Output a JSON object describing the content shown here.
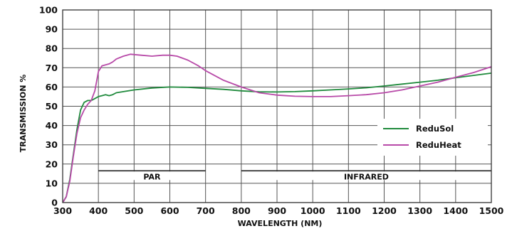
{
  "chart_data": {
    "type": "line",
    "title": "",
    "xlabel": "WAVELENGTH (NM)",
    "ylabel": "TRANSMISSION %",
    "xlim": [
      300,
      1500
    ],
    "ylim": [
      0,
      100
    ],
    "xticks": [
      300,
      400,
      500,
      600,
      700,
      800,
      900,
      1000,
      1100,
      1200,
      1300,
      1400,
      1500
    ],
    "yticks": [
      0,
      10,
      20,
      30,
      40,
      50,
      60,
      70,
      80,
      90,
      100
    ],
    "grid": true,
    "legend_position": "right",
    "series": [
      {
        "name": "ReduSol",
        "color": "#1f8a3c",
        "x": [
          300,
          310,
          320,
          330,
          340,
          350,
          360,
          370,
          380,
          390,
          400,
          410,
          420,
          430,
          440,
          450,
          500,
          550,
          600,
          650,
          700,
          750,
          800,
          850,
          900,
          950,
          1000,
          1050,
          1100,
          1150,
          1200,
          1250,
          1300,
          1350,
          1400,
          1450,
          1500
        ],
        "y": [
          0,
          3,
          12,
          25,
          38,
          48,
          52,
          53,
          53,
          54,
          55,
          55.5,
          56,
          55.5,
          56,
          57,
          58.5,
          59.5,
          60,
          59.8,
          59.3,
          58.8,
          58,
          57.5,
          57.4,
          57.6,
          58,
          58.5,
          59,
          59.6,
          60.5,
          61.5,
          62.5,
          63.5,
          64.8,
          66,
          67.2
        ]
      },
      {
        "name": "ReduHeat",
        "color": "#b84aa8",
        "x": [
          300,
          310,
          320,
          330,
          340,
          350,
          360,
          370,
          380,
          390,
          400,
          410,
          420,
          430,
          440,
          450,
          470,
          490,
          520,
          550,
          580,
          600,
          620,
          650,
          680,
          700,
          750,
          800,
          850,
          900,
          950,
          1000,
          1050,
          1100,
          1150,
          1200,
          1250,
          1300,
          1350,
          1400,
          1450,
          1500
        ],
        "y": [
          0,
          3,
          11,
          24,
          36,
          44,
          48,
          51,
          53,
          58,
          68,
          71,
          71.5,
          72,
          73,
          74.5,
          76,
          77,
          76.5,
          76,
          76.5,
          76.5,
          76,
          74,
          71,
          68.5,
          63.5,
          60,
          57,
          55.8,
          55.2,
          55,
          55,
          55.5,
          56,
          57,
          58.5,
          60.5,
          62.5,
          65,
          67.5,
          70.5
        ]
      }
    ],
    "annotations": [
      {
        "label": "PAR",
        "x_start": 400,
        "x_end": 700,
        "y": 16.5
      },
      {
        "label": "INFRARED",
        "x_start": 800,
        "x_end": 1500,
        "y": 16.5
      }
    ]
  }
}
